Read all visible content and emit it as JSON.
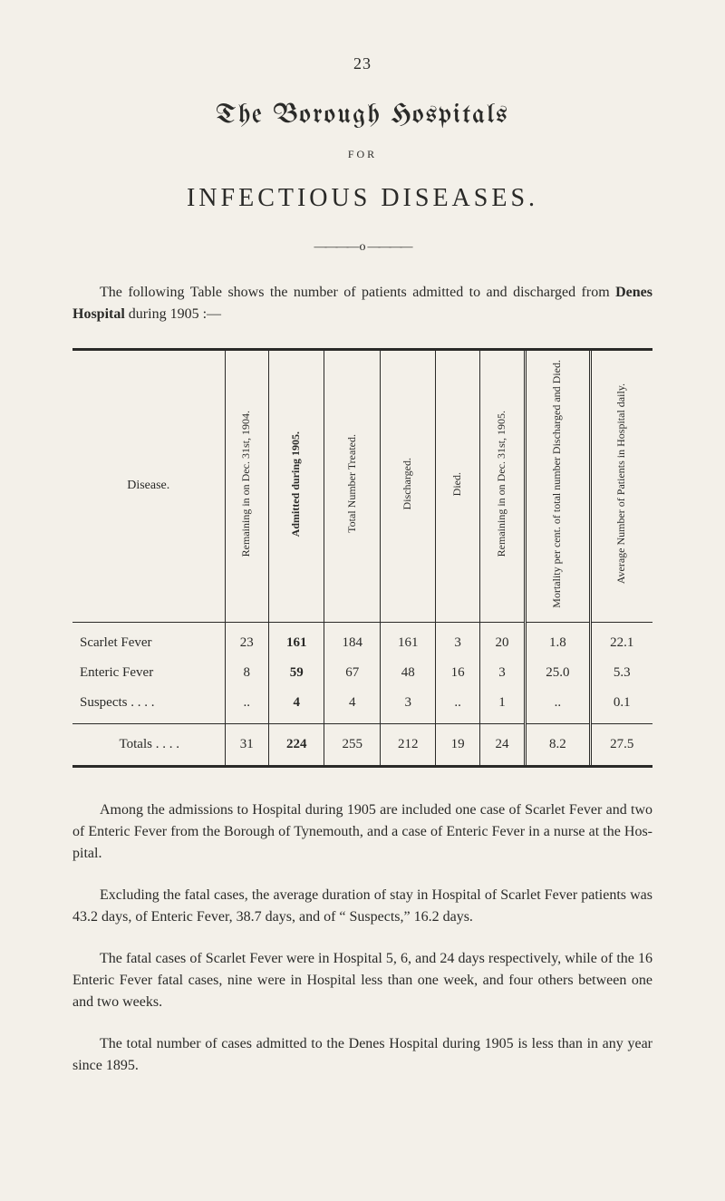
{
  "page_number": "23",
  "title": "The Borough Hospitals",
  "for_label": "FOR",
  "subtitle": "INFECTIOUS  DISEASES.",
  "divider_glyph": "o",
  "intro": {
    "text_before": "The following Table shows the number of patients admitted to and discharged from ",
    "hospital_name": "Denes Hospital",
    "text_after": " during 1905 :—"
  },
  "table": {
    "columns": [
      {
        "label": "Disease.",
        "vertical": false,
        "bold": false
      },
      {
        "label": "Remaining in on\nDec. 31st, 1904.",
        "vertical": true,
        "bold": false
      },
      {
        "label": "Admitted\nduring 1905.",
        "vertical": true,
        "bold": true
      },
      {
        "label": "Total Number\nTreated.",
        "vertical": true,
        "bold": false
      },
      {
        "label": "Discharged.",
        "vertical": true,
        "bold": false
      },
      {
        "label": "Died.",
        "vertical": true,
        "bold": false
      },
      {
        "label": "Remaining in on\nDec. 31st, 1905.",
        "vertical": true,
        "bold": false
      },
      {
        "label": "Mortality per cent.\nof total number\nDischarged and\nDied.",
        "vertical": true,
        "bold": false
      },
      {
        "label": "Average Number\nof Patients in\nHospital daily.",
        "vertical": true,
        "bold": false
      }
    ],
    "rows": [
      {
        "label": "Scarlet Fever",
        "cells": [
          "23",
          "161",
          "184",
          "161",
          "3",
          "20",
          "1.8",
          "22.1"
        ]
      },
      {
        "label": "Enteric Fever",
        "cells": [
          "8",
          "59",
          "67",
          "48",
          "16",
          "3",
          "25.0",
          "5.3"
        ]
      },
      {
        "label": "Suspects  . . . .",
        "cells": [
          "..",
          "4",
          "4",
          "3",
          "..",
          "1",
          "..",
          "0.1"
        ]
      }
    ],
    "totals": {
      "label": "Totals . . . .",
      "cells": [
        "31",
        "224",
        "255",
        "212",
        "19",
        "24",
        "8.2",
        "27.5"
      ]
    }
  },
  "paragraphs": [
    "Among the admissions to Hospital during 1905 are included one case of Scarlet Fever and two of Enteric Fever from the Borough of Tynemouth, and a case of Enteric Fever in a nurse at the Hos­pital.",
    "Excluding the fatal cases, the average duration of stay in Hospital of Scarlet Fever patients was 43.2 days, of Enteric Fever, 38.7 days, and of “ Suspects,” 16.2 days.",
    "The fatal cases of Scarlet Fever were in Hospital 5, 6, and 24 days respectively, while of the 16 Enteric Fever fatal cases, nine were in Hospital less than one week, and four others between one and two weeks.",
    "The total number of cases admitted to the Denes Hospital during 1905 is less than in any year since 1895."
  ]
}
